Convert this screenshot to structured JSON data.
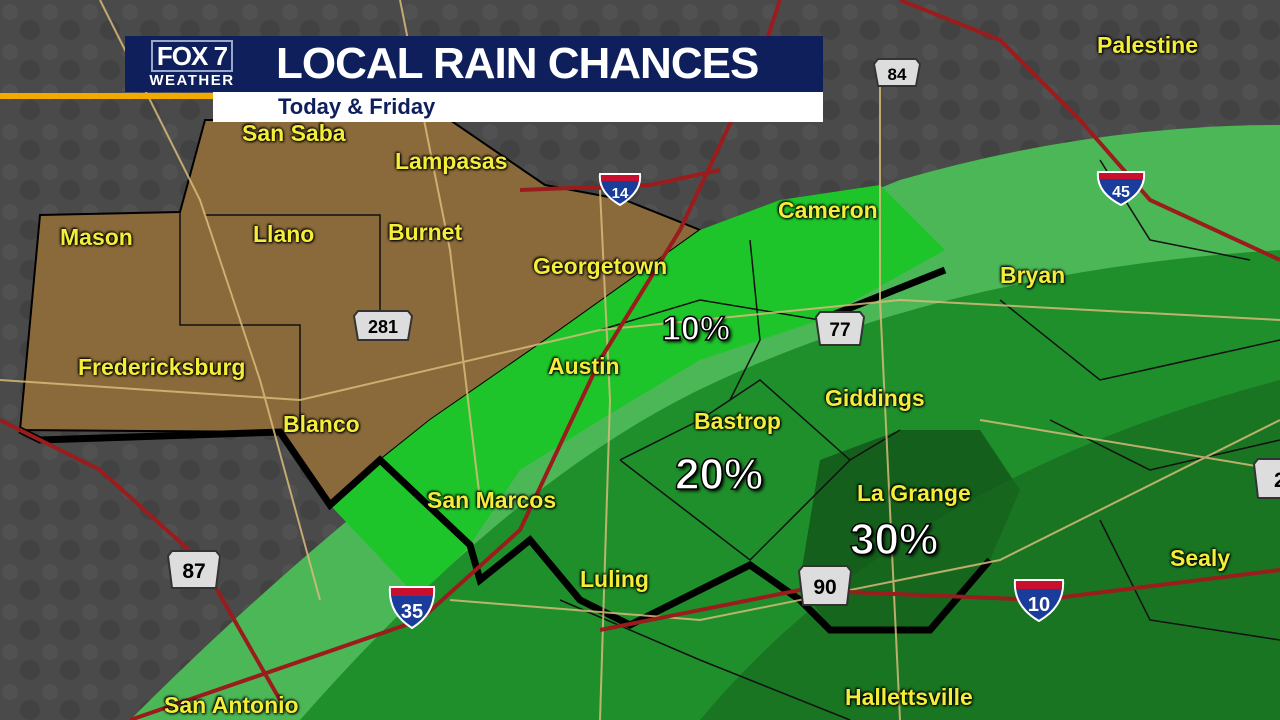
{
  "header": {
    "logo_top": "FOX 7",
    "logo_bottom": "WEATHER",
    "title": "LOCAL RAIN CHANCES",
    "subtitle": "Today & Friday"
  },
  "colors": {
    "banner": "#0e1f5c",
    "accent": "#f2a900",
    "city_label": "#f4ee3a",
    "chance_10": "#1ec52a",
    "chance_20": "#1f8f2b",
    "chance_30": "#145f1c",
    "outer_band": "#4cb757",
    "hill_country": "#8a6a3a"
  },
  "cities": [
    "Palestine",
    "San Saba",
    "Lampasas",
    "Cameron",
    "Mason",
    "Llano",
    "Burnet",
    "Georgetown",
    "Bryan",
    "Fredericksburg",
    "Austin",
    "Giddings",
    "Bastrop",
    "Blanco",
    "San Marcos",
    "La Grange",
    "Sealy",
    "Luling",
    "San Antonio",
    "Hallettsville"
  ],
  "chances": [
    "10%",
    "20%",
    "30%"
  ],
  "highways": {
    "interstates": [
      "14",
      "45",
      "35",
      "10"
    ],
    "us_routes": [
      "84",
      "281",
      "77",
      "87",
      "90",
      "2"
    ]
  }
}
